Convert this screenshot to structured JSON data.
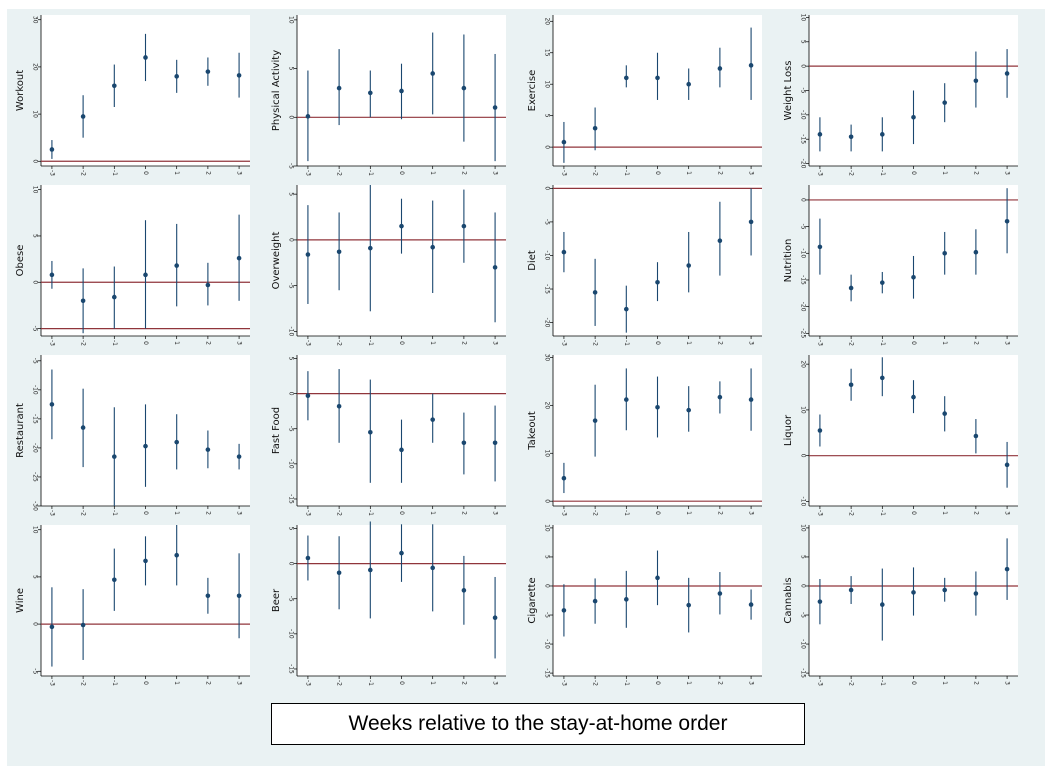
{
  "xlabel": "Weeks relative to the stay-at-home order",
  "colors": {
    "estimate": "#1a476f",
    "reference_line": "#90353b",
    "plot_background": "#ffffff",
    "figure_background": "#eaf2f3"
  },
  "chart_data": [
    {
      "type": "scatter",
      "ylabel": "Workout",
      "x": [
        -3,
        -2,
        -1,
        0,
        1,
        2,
        3
      ],
      "yticks": [
        0,
        10,
        20,
        30
      ],
      "ylim": [
        -1,
        31
      ],
      "reference_line": 0,
      "estimate": [
        2.5,
        9.5,
        16,
        22,
        18,
        19,
        18.2
      ],
      "ci_low": [
        0.5,
        5,
        11.5,
        17,
        14.5,
        16,
        13.5
      ],
      "ci_high": [
        4.5,
        14,
        20.5,
        27,
        21.5,
        22,
        23
      ]
    },
    {
      "type": "scatter",
      "ylabel": "Physical Activity",
      "x": [
        -3,
        -2,
        -1,
        0,
        1,
        2,
        3
      ],
      "yticks": [
        -5,
        0,
        5,
        10
      ],
      "ylim": [
        -5,
        10.5
      ],
      "reference_line": 0,
      "estimate": [
        0.1,
        3,
        2.5,
        2.7,
        4.5,
        3,
        1
      ],
      "ci_low": [
        -4.5,
        -0.8,
        0,
        -0.2,
        0.3,
        -2.5,
        -4.5
      ],
      "ci_high": [
        4.8,
        7,
        4.8,
        5.5,
        8.7,
        8.5,
        6.5
      ]
    },
    {
      "type": "scatter",
      "ylabel": "Exercise",
      "x": [
        -3,
        -2,
        -1,
        0,
        1,
        2,
        3
      ],
      "yticks": [
        0,
        5,
        10,
        15,
        20
      ],
      "ylim": [
        -3,
        21
      ],
      "reference_line": 0,
      "estimate": [
        0.8,
        3,
        11,
        11,
        10,
        12.5,
        13
      ],
      "ci_low": [
        -2.5,
        -0.5,
        9.5,
        7.5,
        7.5,
        9.5,
        7.5
      ],
      "ci_high": [
        4,
        6.3,
        13,
        15,
        12.5,
        15.8,
        19
      ]
    },
    {
      "type": "scatter",
      "ylabel": "Weight Loss",
      "x": [
        -3,
        -2,
        -1,
        0,
        1,
        2,
        3
      ],
      "yticks": [
        -20,
        -15,
        -10,
        -5,
        0,
        5,
        10
      ],
      "ylim": [
        -20.5,
        10.5
      ],
      "reference_line": 0,
      "estimate": [
        -14,
        -14.5,
        -14,
        -10.5,
        -7.5,
        -3,
        -1.5
      ],
      "ci_low": [
        -17.5,
        -17.5,
        -17.5,
        -16,
        -11.5,
        -8.5,
        -6.5
      ],
      "ci_high": [
        -10.5,
        -12,
        -10.5,
        -5,
        -3.5,
        3,
        3.5
      ]
    },
    {
      "type": "scatter",
      "ylabel": "Obese",
      "x": [
        -3,
        -2,
        -1,
        0,
        1,
        2,
        3
      ],
      "yticks": [
        -5,
        0,
        5,
        10
      ],
      "ylim": [
        -5.8,
        10.5
      ],
      "reference_line": [
        0,
        -5
      ],
      "estimate": [
        0.8,
        -2,
        -1.6,
        0.8,
        1.8,
        -0.3,
        2.6
      ],
      "ci_low": [
        -0.7,
        -5.5,
        -5,
        -5,
        -2.6,
        -2.5,
        -2
      ],
      "ci_high": [
        2.3,
        1.5,
        1.7,
        6.7,
        6.3,
        2.1,
        7.3
      ]
    },
    {
      "type": "scatter",
      "ylabel": "Overweight",
      "x": [
        -3,
        -2,
        -1,
        0,
        1,
        2,
        3
      ],
      "yticks": [
        -10,
        -5,
        0,
        5
      ],
      "ylim": [
        -10.5,
        6
      ],
      "reference_line": 0,
      "estimate": [
        -1.6,
        -1.3,
        -0.9,
        1.5,
        -0.8,
        1.5,
        -3
      ],
      "ci_low": [
        -7,
        -5.5,
        -7.8,
        -1.5,
        -5.8,
        -2.5,
        -9
      ],
      "ci_high": [
        3.8,
        3,
        6,
        4.5,
        4.3,
        5.5,
        3
      ]
    },
    {
      "type": "scatter",
      "ylabel": "Diet",
      "x": [
        -3,
        -2,
        -1,
        0,
        1,
        2,
        3
      ],
      "yticks": [
        -20,
        -15,
        -10,
        -5,
        0
      ],
      "ylim": [
        -22,
        0.5
      ],
      "reference_line": 0,
      "estimate": [
        -9.5,
        -15.5,
        -18,
        -14,
        -11.5,
        -7.8,
        -5
      ],
      "ci_low": [
        -12.5,
        -20.5,
        -21.5,
        -16.8,
        -15.5,
        -13,
        -10
      ],
      "ci_high": [
        -6.5,
        -10.5,
        -14.5,
        -11,
        -6.5,
        -2,
        0
      ]
    },
    {
      "type": "scatter",
      "ylabel": "Nutrition",
      "x": [
        -3,
        -2,
        -1,
        0,
        1,
        2,
        3
      ],
      "yticks": [
        -25,
        -20,
        -15,
        -10,
        -5,
        0
      ],
      "ylim": [
        -25.5,
        2.8
      ],
      "reference_line": 0,
      "estimate": [
        -8.8,
        -16.5,
        -15.5,
        -14.5,
        -10,
        -9.8,
        -4
      ],
      "ci_low": [
        -14,
        -19,
        -17.5,
        -18.5,
        -14,
        -14,
        -10
      ],
      "ci_high": [
        -3.5,
        -14,
        -13.5,
        -10.5,
        -6,
        -5.5,
        2.2
      ]
    },
    {
      "type": "scatter",
      "ylabel": "Restaurant",
      "x": [
        -3,
        -2,
        -1,
        0,
        1,
        2,
        3
      ],
      "yticks": [
        -30,
        -25,
        -20,
        -15,
        -10,
        -5
      ],
      "ylim": [
        -30,
        -4
      ],
      "reference_line": null,
      "estimate": [
        -12.5,
        -16.5,
        -21.5,
        -19.7,
        -19,
        -20.3,
        -21.5
      ],
      "ci_low": [
        -18.5,
        -23.3,
        -30,
        -26.7,
        -23.7,
        -23.5,
        -23.7
      ],
      "ci_high": [
        -6.5,
        -9.8,
        -13,
        -12.5,
        -14.2,
        -17,
        -19.3
      ]
    },
    {
      "type": "scatter",
      "ylabel": "Fast Food",
      "x": [
        -3,
        -2,
        -1,
        0,
        1,
        2,
        3
      ],
      "yticks": [
        -15,
        -10,
        -5,
        0,
        5
      ],
      "ylim": [
        -16,
        5.5
      ],
      "reference_line": 0,
      "estimate": [
        -0.3,
        -1.8,
        -5.5,
        -8,
        -3.7,
        -7,
        -7
      ],
      "ci_low": [
        -3.8,
        -7,
        -12.7,
        -12.7,
        -7,
        -11.5,
        -12.5
      ],
      "ci_high": [
        3.2,
        3.5,
        2,
        -3.7,
        0,
        -2.7,
        -1.7
      ]
    },
    {
      "type": "scatter",
      "ylabel": "Takeout",
      "x": [
        -3,
        -2,
        -1,
        0,
        1,
        2,
        3
      ],
      "yticks": [
        0,
        10,
        20,
        30
      ],
      "ylim": [
        -1,
        30.5
      ],
      "reference_line": 0,
      "estimate": [
        4.8,
        16.8,
        21.2,
        19.6,
        19,
        21.7,
        21.2
      ],
      "ci_low": [
        1.7,
        9.3,
        14.8,
        13.3,
        14.5,
        18.3,
        14.7
      ],
      "ci_high": [
        8,
        24.3,
        27.7,
        26,
        24,
        25,
        27.7
      ]
    },
    {
      "type": "scatter",
      "ylabel": "Liquor",
      "x": [
        -3,
        -2,
        -1,
        0,
        1,
        2,
        3
      ],
      "yticks": [
        -10,
        0,
        10,
        20
      ],
      "ylim": [
        -11,
        22
      ],
      "reference_line": 0,
      "estimate": [
        5.5,
        15.5,
        17,
        12.8,
        9.2,
        4.3,
        -2
      ],
      "ci_low": [
        2,
        12,
        13,
        9.3,
        5.3,
        0.5,
        -7
      ],
      "ci_high": [
        9,
        19,
        21.5,
        16.5,
        13,
        8,
        3
      ]
    },
    {
      "type": "scatter",
      "ylabel": "Wine",
      "x": [
        -3,
        -2,
        -1,
        0,
        1,
        2,
        3
      ],
      "yticks": [
        -5,
        0,
        5,
        10
      ],
      "ylim": [
        -5.5,
        10.5
      ],
      "reference_line": 0,
      "estimate": [
        -0.3,
        -0.1,
        4.7,
        6.7,
        7.3,
        3,
        3
      ],
      "ci_low": [
        -4.5,
        -3.8,
        1.4,
        4.1,
        4.1,
        1.1,
        -1.5
      ],
      "ci_high": [
        3.9,
        3.7,
        8,
        9.3,
        10.5,
        4.9,
        7.5
      ]
    },
    {
      "type": "scatter",
      "ylabel": "Beer",
      "x": [
        -3,
        -2,
        -1,
        0,
        1,
        2,
        3
      ],
      "yticks": [
        -15,
        -10,
        -5,
        0,
        5
      ],
      "ylim": [
        -16,
        5.5
      ],
      "reference_line": 0,
      "estimate": [
        0.8,
        -1.3,
        -0.9,
        1.5,
        -0.6,
        -3.8,
        -7.7
      ],
      "ci_low": [
        -2.4,
        -6.5,
        -7.8,
        -2.6,
        -6.8,
        -8.7,
        -13.5
      ],
      "ci_high": [
        4,
        3.9,
        6,
        5.6,
        5.6,
        1.1,
        -1.9
      ]
    },
    {
      "type": "scatter",
      "ylabel": "Cigarette",
      "x": [
        -3,
        -2,
        -1,
        0,
        1,
        2,
        3
      ],
      "yticks": [
        -15,
        -10,
        -5,
        0,
        5,
        10
      ],
      "ylim": [
        -15.5,
        10.5
      ],
      "reference_line": 0,
      "estimate": [
        -4.2,
        -2.6,
        -2.3,
        1.4,
        -3.3,
        -1.3,
        -3.2
      ],
      "ci_low": [
        -8.7,
        -6.5,
        -7.2,
        -3.3,
        -8,
        -4.9,
        -5.8
      ],
      "ci_high": [
        0.3,
        1.3,
        2.6,
        6.1,
        1.4,
        2.4,
        -0.6
      ]
    },
    {
      "type": "scatter",
      "ylabel": "Cannabis",
      "x": [
        -3,
        -2,
        -1,
        0,
        1,
        2,
        3
      ],
      "yticks": [
        -15,
        -10,
        -5,
        0,
        5,
        10
      ],
      "ylim": [
        -15.5,
        10.5
      ],
      "reference_line": 0,
      "estimate": [
        -2.7,
        -0.7,
        -3.2,
        -1.1,
        -0.7,
        -1.3,
        2.9
      ],
      "ci_low": [
        -6.6,
        -3.1,
        -9.4,
        -5.1,
        -2.7,
        -5.1,
        -2.4
      ],
      "ci_high": [
        1.2,
        1.7,
        3,
        3.2,
        1.4,
        2.5,
        8.2
      ]
    }
  ]
}
